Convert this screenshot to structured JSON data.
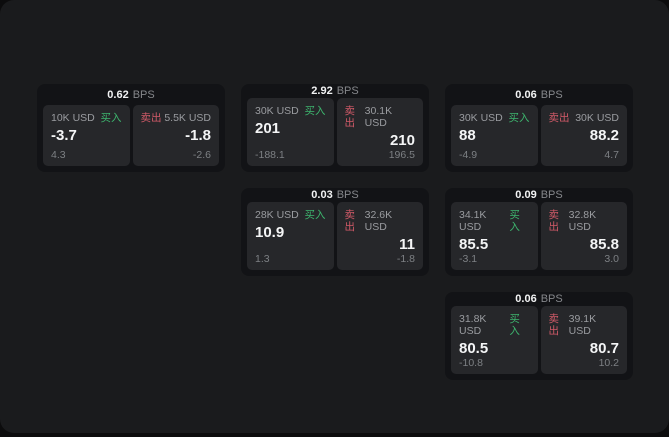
{
  "labels": {
    "bps": "BPS",
    "buy": "买入",
    "sell": "卖出"
  },
  "colors": {
    "canvas_bg": "#1a1b1d",
    "card_bg": "#121316",
    "panel_bg": "#26272a",
    "buy_green": "#3db56e",
    "sell_red": "#d15a68"
  },
  "cards": [
    {
      "bps": "0.62",
      "row": 1,
      "col": 1,
      "buy": {
        "size": "10K USD",
        "price": "-3.7",
        "delta": "4.3"
      },
      "sell": {
        "size": "5.5K USD",
        "price": "-1.8",
        "delta": "-2.6"
      }
    },
    {
      "bps": "2.92",
      "row": 1,
      "col": 2,
      "buy": {
        "size": "30K USD",
        "price": "201",
        "delta": "-188.1"
      },
      "sell": {
        "size": "30.1K USD",
        "price": "210",
        "delta": "196.5"
      }
    },
    {
      "bps": "0.06",
      "row": 1,
      "col": 3,
      "buy": {
        "size": "30K USD",
        "price": "88",
        "delta": "-4.9"
      },
      "sell": {
        "size": "30K USD",
        "price": "88.2",
        "delta": "4.7"
      }
    },
    {
      "bps": "0.03",
      "row": 2,
      "col": 2,
      "buy": {
        "size": "28K USD",
        "price": "10.9",
        "delta": "1.3"
      },
      "sell": {
        "size": "32.6K USD",
        "price": "11",
        "delta": "-1.8"
      }
    },
    {
      "bps": "0.09",
      "row": 2,
      "col": 3,
      "buy": {
        "size": "34.1K USD",
        "price": "85.5",
        "delta": "-3.1"
      },
      "sell": {
        "size": "32.8K USD",
        "price": "85.8",
        "delta": "3.0"
      }
    },
    {
      "bps": "0.06",
      "row": 3,
      "col": 3,
      "buy": {
        "size": "31.8K USD",
        "price": "80.5",
        "delta": "-10.8"
      },
      "sell": {
        "size": "39.1K USD",
        "price": "80.7",
        "delta": "10.2"
      }
    }
  ]
}
